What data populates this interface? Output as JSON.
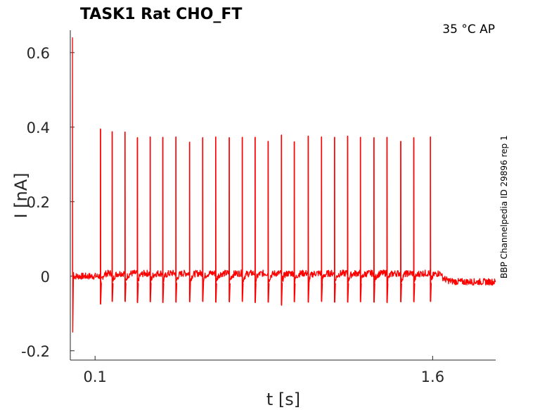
{
  "chart_data": {
    "type": "line",
    "title": "TASK1  Rat  CHO_FT",
    "condition": "35 °C  AP",
    "side_label": "BBP Channelpedia ID 29896 rep 1",
    "xlabel": "t [s]",
    "ylabel": "I [nA]",
    "xlim": [
      -0.01,
      1.88
    ],
    "ylim": [
      -0.225,
      0.66
    ],
    "x_ticks": [
      {
        "value": 0.1,
        "label": "0.1"
      },
      {
        "value": 1.6,
        "label": "1.6"
      }
    ],
    "y_ticks": [
      {
        "value": 0.6,
        "label": "0.6"
      },
      {
        "value": 0.4,
        "label": "0.4"
      },
      {
        "value": 0.2,
        "label": "0.2"
      },
      {
        "value": 0.0,
        "label": "0"
      },
      {
        "value": -0.2,
        "label": "-0.2"
      }
    ],
    "grid": false,
    "series": [
      {
        "color": "#ff0000",
        "baseline": 0.0,
        "initial_transient": {
          "t": 0.0,
          "max": 0.64,
          "min": -0.15
        },
        "spike_times": [
          0.124,
          0.176,
          0.233,
          0.288,
          0.345,
          0.401,
          0.459,
          0.52,
          0.578,
          0.636,
          0.696,
          0.754,
          0.811,
          0.869,
          0.928,
          0.985,
          1.047,
          1.106,
          1.164,
          1.222,
          1.279,
          1.339,
          1.397,
          1.458,
          1.516,
          1.59
        ],
        "spike_peaks": [
          0.395,
          0.388,
          0.387,
          0.372,
          0.374,
          0.373,
          0.374,
          0.36,
          0.372,
          0.374,
          0.372,
          0.373,
          0.373,
          0.362,
          0.379,
          0.361,
          0.376,
          0.374,
          0.373,
          0.376,
          0.373,
          0.372,
          0.373,
          0.362,
          0.372,
          0.374
        ],
        "spike_troughs": [
          -0.075,
          -0.068,
          -0.068,
          -0.071,
          -0.069,
          -0.071,
          -0.07,
          -0.069,
          -0.068,
          -0.07,
          -0.069,
          -0.068,
          -0.071,
          -0.07,
          -0.078,
          -0.069,
          -0.07,
          -0.068,
          -0.07,
          -0.07,
          -0.069,
          -0.07,
          -0.071,
          -0.069,
          -0.069,
          -0.068
        ],
        "post_stimulus": {
          "t_start": 1.64,
          "level": -0.015
        }
      }
    ]
  }
}
